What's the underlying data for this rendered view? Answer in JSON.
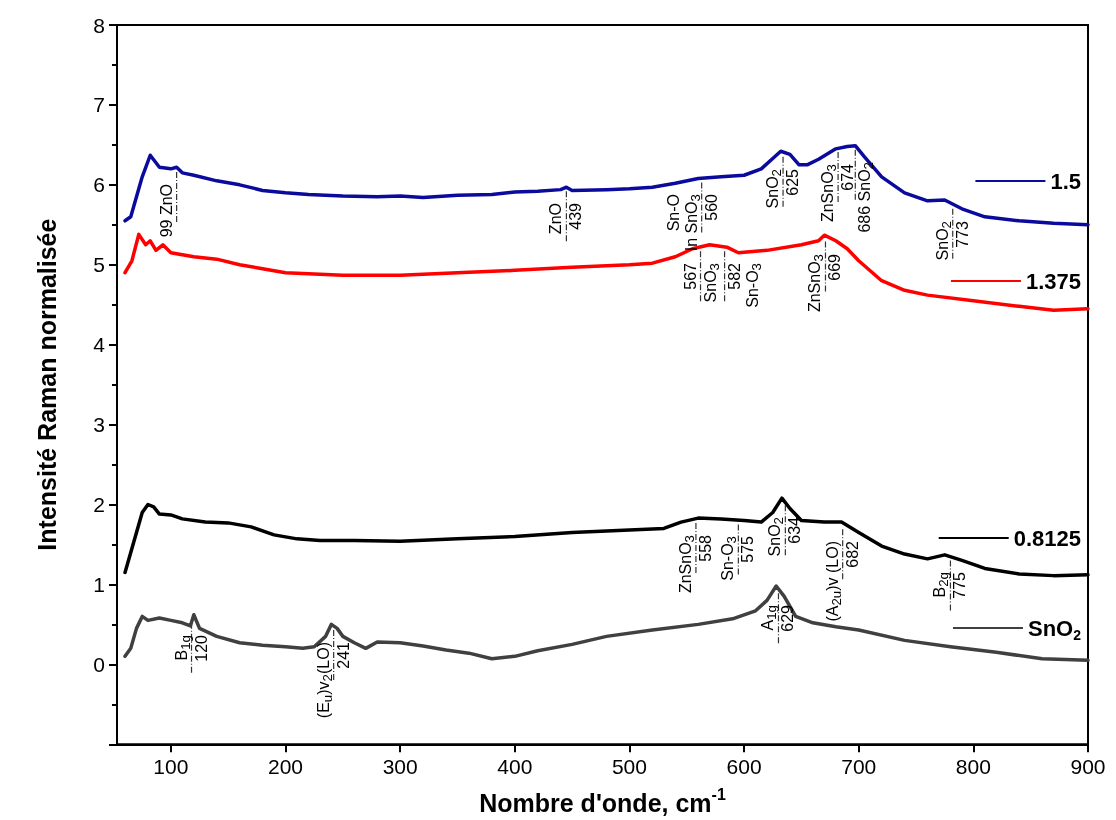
{
  "chart_data": {
    "type": "line",
    "xlabel": "Nombre d'onde, cm$^{-1}$",
    "ylabel": "Intensité Raman normalisée",
    "xlim": [
      53,
      900
    ],
    "xticks": [
      100,
      200,
      300,
      400,
      500,
      600,
      700,
      800,
      900
    ],
    "ylim": [
      -1,
      8
    ],
    "yticks": [
      0,
      1,
      2,
      3,
      4,
      5,
      6,
      7,
      8
    ],
    "grid": false,
    "legend": "right",
    "marker": "none",
    "series": [
      {
        "name": "1.5",
        "color": "#0a0a9c",
        "x": [
          60,
          65,
          70,
          75,
          82,
          90,
          100,
          105,
          110,
          120,
          140,
          160,
          180,
          200,
          220,
          250,
          280,
          300,
          320,
          350,
          380,
          400,
          420,
          440,
          445,
          450,
          480,
          500,
          520,
          540,
          560,
          580,
          600,
          615,
          625,
          632,
          640,
          648,
          655,
          665,
          680,
          690,
          697,
          705,
          720,
          740,
          760,
          775,
          790,
          810,
          840,
          870,
          900
        ],
        "values": [
          5.55,
          5.6,
          5.85,
          6.1,
          6.37,
          6.22,
          6.2,
          6.22,
          6.15,
          6.12,
          6.05,
          6.0,
          5.93,
          5.9,
          5.88,
          5.86,
          5.85,
          5.86,
          5.84,
          5.87,
          5.88,
          5.91,
          5.92,
          5.94,
          5.97,
          5.93,
          5.94,
          5.95,
          5.97,
          6.02,
          6.08,
          6.1,
          6.12,
          6.2,
          6.33,
          6.42,
          6.38,
          6.25,
          6.25,
          6.32,
          6.45,
          6.48,
          6.49,
          6.35,
          6.1,
          5.9,
          5.8,
          5.81,
          5.7,
          5.6,
          5.55,
          5.52,
          5.5
        ]
      },
      {
        "name": "1.375",
        "color": "#ff0000",
        "x": [
          60,
          66,
          72,
          78,
          82,
          87,
          93,
          100,
          120,
          140,
          160,
          180,
          200,
          250,
          300,
          350,
          400,
          450,
          500,
          520,
          540,
          555,
          570,
          585,
          595,
          620,
          650,
          665,
          670,
          680,
          690,
          700,
          720,
          740,
          760,
          800,
          840,
          870,
          900
        ],
        "values": [
          4.9,
          5.05,
          5.38,
          5.25,
          5.3,
          5.18,
          5.25,
          5.15,
          5.1,
          5.07,
          5.0,
          4.95,
          4.9,
          4.87,
          4.87,
          4.9,
          4.93,
          4.97,
          5.0,
          5.02,
          5.1,
          5.2,
          5.25,
          5.22,
          5.15,
          5.18,
          5.25,
          5.3,
          5.37,
          5.3,
          5.2,
          5.05,
          4.8,
          4.68,
          4.62,
          4.55,
          4.48,
          4.43,
          4.45
        ]
      },
      {
        "name": "0.8125",
        "color": "#000000",
        "x": [
          60,
          65,
          70,
          75,
          80,
          85,
          90,
          100,
          110,
          130,
          150,
          170,
          190,
          210,
          230,
          260,
          300,
          350,
          400,
          450,
          500,
          530,
          545,
          560,
          580,
          600,
          615,
          625,
          633,
          640,
          650,
          670,
          685,
          700,
          720,
          740,
          760,
          775,
          790,
          810,
          840,
          870,
          900
        ],
        "values": [
          1.15,
          1.4,
          1.65,
          1.9,
          2.0,
          1.97,
          1.88,
          1.87,
          1.82,
          1.78,
          1.77,
          1.72,
          1.62,
          1.57,
          1.55,
          1.55,
          1.54,
          1.57,
          1.6,
          1.65,
          1.68,
          1.7,
          1.78,
          1.83,
          1.82,
          1.8,
          1.78,
          1.9,
          2.08,
          1.95,
          1.8,
          1.78,
          1.78,
          1.65,
          1.48,
          1.38,
          1.32,
          1.37,
          1.3,
          1.2,
          1.13,
          1.11,
          1.12
        ]
      },
      {
        "name": "SnO$_{2}$",
        "color": "#404040",
        "x": [
          60,
          65,
          70,
          75,
          80,
          90,
          100,
          110,
          117,
          120,
          125,
          140,
          160,
          180,
          200,
          215,
          225,
          235,
          240,
          245,
          250,
          260,
          270,
          280,
          300,
          320,
          340,
          360,
          380,
          400,
          420,
          450,
          480,
          520,
          560,
          590,
          610,
          620,
          628,
          635,
          645,
          660,
          680,
          700,
          740,
          780,
          820,
          860,
          900
        ],
        "values": [
          0.1,
          0.2,
          0.45,
          0.6,
          0.55,
          0.58,
          0.55,
          0.52,
          0.48,
          0.62,
          0.45,
          0.35,
          0.27,
          0.24,
          0.22,
          0.2,
          0.22,
          0.35,
          0.5,
          0.45,
          0.35,
          0.27,
          0.2,
          0.28,
          0.27,
          0.23,
          0.18,
          0.14,
          0.07,
          0.1,
          0.17,
          0.25,
          0.35,
          0.43,
          0.5,
          0.57,
          0.67,
          0.8,
          0.98,
          0.85,
          0.6,
          0.52,
          0.47,
          0.43,
          0.3,
          0.22,
          0.15,
          0.07,
          0.05
        ]
      }
    ],
    "annotations": [
      {
        "text": "99 ZnO",
        "x": 105,
        "y": 6.21
      },
      {
        "text": "ZnO",
        "x": 445,
        "y": 5.97
      },
      {
        "text": "439",
        "x": 445,
        "y": 5.97
      },
      {
        "text": "Sn-O",
        "x": 563,
        "y": 6.08
      },
      {
        "text": "In SnO$_{3}$",
        "x": 563,
        "y": 6.08
      },
      {
        "text": "560",
        "x": 563,
        "y": 6.08
      },
      {
        "text": "SnO$_{2}$",
        "x": 634,
        "y": 6.4
      },
      {
        "text": "625",
        "x": 634,
        "y": 6.4
      },
      {
        "text": "ZnSnO$_{3}$",
        "x": 682,
        "y": 6.46
      },
      {
        "text": "674",
        "x": 682,
        "y": 6.46
      },
      {
        "text": "686 SnO$_{2}$",
        "x": 697,
        "y": 6.49
      },
      {
        "text": "SnO$_{2}$",
        "x": 782,
        "y": 5.75
      },
      {
        "text": "773",
        "x": 782,
        "y": 5.75
      },
      {
        "text": "567",
        "x": 562,
        "y": 5.22
      },
      {
        "text": "SnO$_{3}$",
        "x": 562,
        "y": 5.22
      },
      {
        "text": "582",
        "x": 583,
        "y": 5.22
      },
      {
        "text": "Sn-O$_{3}$",
        "x": 583,
        "y": 5.22
      },
      {
        "text": "ZnSnO$_{3}$",
        "x": 671,
        "y": 5.34
      },
      {
        "text": "669",
        "x": 671,
        "y": 5.34
      },
      {
        "text": "ZnSnO$_{3}$",
        "x": 558,
        "y": 1.82
      },
      {
        "text": "558",
        "x": 558,
        "y": 1.82
      },
      {
        "text": "Sn-O$_{3}$",
        "x": 595,
        "y": 1.8
      },
      {
        "text": "575",
        "x": 595,
        "y": 1.8
      },
      {
        "text": "SnO$_{2}$",
        "x": 636,
        "y": 2.04
      },
      {
        "text": "634",
        "x": 636,
        "y": 2.04
      },
      {
        "text": "(A$_{2u}$)v (LO)",
        "x": 686,
        "y": 1.74
      },
      {
        "text": "682",
        "x": 686,
        "y": 1.74
      },
      {
        "text": "B$_{2g}$",
        "x": 780,
        "y": 1.35
      },
      {
        "text": "775",
        "x": 780,
        "y": 1.35
      },
      {
        "text": "B$_{1g}$",
        "x": 118,
        "y": 0.57
      },
      {
        "text": "120",
        "x": 118,
        "y": 0.57
      },
      {
        "text": "(E$_{u}$)v$_{2}$(LO)",
        "x": 242,
        "y": 0.48
      },
      {
        "text": "241",
        "x": 242,
        "y": 0.48
      },
      {
        "text": "A$_{1g}$",
        "x": 630,
        "y": 0.94
      },
      {
        "text": "629",
        "x": 630,
        "y": 0.94
      }
    ]
  }
}
